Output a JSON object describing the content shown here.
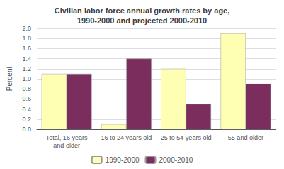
{
  "chart_data": {
    "type": "bar",
    "title": "Civilian labor force annual growth rates by age,\n1990-2000 and projected 2000-2010",
    "categories": [
      "Total, 16 years\nand older",
      "16 to 24 years old",
      "25 to 54 years old",
      "55 and older"
    ],
    "series": [
      {
        "name": "1990-2000",
        "color": "#FFFFB3",
        "values": [
          1.1,
          0.1,
          1.2,
          1.9
        ]
      },
      {
        "name": "2000-2010",
        "color": "#7B2D5E",
        "values": [
          1.1,
          1.4,
          0.5,
          0.9
        ]
      }
    ],
    "ylabel": "Percent",
    "ylim": [
      0,
      2.0
    ],
    "yticks": [
      {
        "value": 0.0,
        "label": "0.0"
      },
      0.2,
      0.4,
      0.6,
      0.8,
      {
        "value": 1.0,
        "label": "1.0"
      },
      1.2,
      1.4,
      1.6,
      1.8,
      {
        "value": 2.0,
        "label": "2.0"
      }
    ],
    "grid": true,
    "legend": "bottom"
  }
}
